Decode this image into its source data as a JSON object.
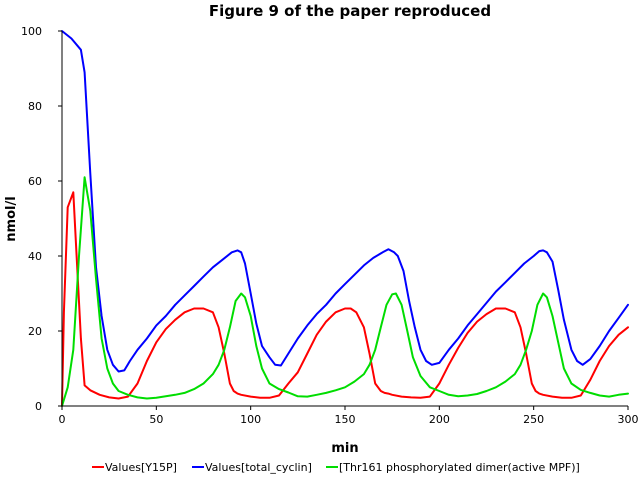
{
  "chart_data": {
    "type": "line",
    "title": "Figure 9 of the paper reproduced",
    "xlabel": "min",
    "ylabel": "nmol/l",
    "xlim": [
      0,
      300
    ],
    "ylim": [
      0,
      100
    ],
    "xticks": [
      0,
      50,
      100,
      150,
      200,
      250,
      300
    ],
    "yticks": [
      0,
      20,
      40,
      60,
      80,
      100
    ],
    "grid": false,
    "legend_position": "bottom",
    "series": [
      {
        "name": "Values[Y15P]",
        "color": "#ff0000",
        "x": [
          0,
          1,
          3,
          6,
          10,
          12,
          15,
          20,
          25,
          30,
          35,
          40,
          45,
          50,
          55,
          60,
          65,
          70,
          75,
          80,
          83,
          86,
          89,
          91,
          93,
          95,
          100,
          105,
          110,
          115,
          120,
          125,
          130,
          135,
          140,
          145,
          150,
          153,
          156,
          160,
          163,
          166,
          169,
          171,
          173,
          175,
          180,
          185,
          190,
          195,
          200,
          205,
          210,
          215,
          220,
          225,
          230,
          235,
          240,
          243,
          246,
          249,
          251,
          253,
          255,
          260,
          265,
          270,
          275,
          280,
          285,
          290,
          295,
          300
        ],
        "y": [
          0,
          25,
          53,
          57,
          18,
          5.5,
          4.2,
          3,
          2.3,
          2,
          2.5,
          6,
          12,
          17,
          20.5,
          23,
          25,
          26,
          26,
          25,
          21,
          14,
          6,
          4,
          3.3,
          3,
          2.5,
          2.2,
          2.2,
          2.8,
          6,
          9,
          14,
          19,
          22.5,
          25,
          26,
          26,
          25,
          21,
          14,
          6,
          4,
          3.5,
          3.3,
          3,
          2.5,
          2.3,
          2.2,
          2.5,
          6,
          11,
          15.5,
          19.5,
          22.5,
          24.5,
          26,
          26,
          25,
          21,
          14,
          6,
          4,
          3.3,
          3,
          2.5,
          2.2,
          2.2,
          2.8,
          7,
          12,
          16,
          19,
          21
        ]
      },
      {
        "name": "Values[total_cyclin]",
        "color": "#0000ff",
        "x": [
          0,
          5,
          10,
          12,
          15,
          18,
          21,
          24,
          27,
          30,
          33,
          36,
          40,
          45,
          50,
          55,
          60,
          65,
          70,
          75,
          80,
          85,
          90,
          93,
          95,
          97,
          100,
          103,
          106,
          110,
          113,
          116,
          120,
          125,
          130,
          135,
          140,
          145,
          150,
          155,
          160,
          165,
          170,
          173,
          176,
          178,
          181,
          184,
          187,
          190,
          193,
          196,
          200,
          205,
          210,
          215,
          220,
          225,
          230,
          235,
          240,
          245,
          250,
          253,
          255,
          257,
          260,
          263,
          266,
          270,
          273,
          276,
          280,
          285,
          290,
          295,
          300
        ],
        "y": [
          100,
          98,
          95,
          89,
          62,
          37,
          24,
          15,
          11,
          9.2,
          9.5,
          12,
          15,
          18,
          21.5,
          24,
          27,
          29.5,
          32,
          34.5,
          37,
          39,
          41,
          41.5,
          41,
          38,
          30,
          22,
          16,
          13,
          11,
          10.8,
          14,
          18,
          21.5,
          24.5,
          27,
          30,
          32.5,
          35,
          37.5,
          39.5,
          41,
          41.8,
          41,
          40,
          36,
          28,
          21,
          15,
          12,
          11,
          11.5,
          15,
          18,
          21.5,
          24.5,
          27.5,
          30.5,
          33,
          35.5,
          38,
          40,
          41.3,
          41.5,
          41,
          38.5,
          31,
          23,
          15,
          12,
          11,
          12.5,
          16,
          20,
          23.5,
          27
        ]
      },
      {
        "name": "[Thr161 phosphorylated dimer(active MPF)]",
        "color": "#00dd00",
        "x": [
          0,
          3,
          6,
          9,
          12,
          15,
          18,
          21,
          24,
          27,
          30,
          35,
          40,
          45,
          50,
          55,
          60,
          65,
          70,
          75,
          80,
          83,
          86,
          89,
          92,
          95,
          97,
          100,
          103,
          106,
          110,
          115,
          120,
          125,
          130,
          135,
          140,
          145,
          150,
          155,
          160,
          163,
          166,
          169,
          172,
          175,
          177,
          180,
          183,
          186,
          190,
          195,
          200,
          205,
          210,
          215,
          220,
          225,
          230,
          235,
          240,
          243,
          246,
          249,
          252,
          255,
          257,
          260,
          263,
          266,
          270,
          275,
          280,
          285,
          290,
          295,
          300
        ],
        "y": [
          0,
          5,
          15,
          40,
          61,
          52,
          34,
          18,
          10,
          6,
          4,
          3,
          2.3,
          2,
          2.2,
          2.6,
          3,
          3.5,
          4.5,
          6,
          8.5,
          11,
          15,
          21,
          28,
          30,
          29,
          24,
          16,
          10,
          6,
          4.5,
          3.6,
          2.6,
          2.5,
          3,
          3.5,
          4.2,
          5,
          6.5,
          8.5,
          11,
          15,
          21,
          27,
          29.8,
          30,
          27,
          20,
          13,
          8,
          5,
          4,
          3,
          2.6,
          2.8,
          3.2,
          4,
          5,
          6.5,
          8.5,
          11,
          15,
          20,
          27,
          30,
          29,
          24,
          17,
          10,
          6,
          4.3,
          3.5,
          2.8,
          2.5,
          3,
          3.3
        ]
      }
    ]
  }
}
